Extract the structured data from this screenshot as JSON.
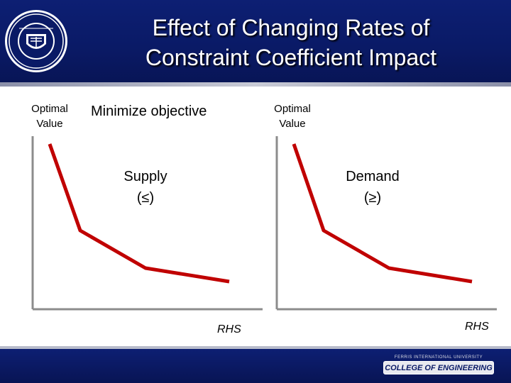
{
  "slide": {
    "title_line1": "Effect of Changing Rates of",
    "title_line2": "Constraint Coefficient Impact"
  },
  "left_graph": {
    "y_label_line1": "Optimal",
    "y_label_line2": "Value",
    "objective": "Minimize objective",
    "constraint_line1": "Supply",
    "constraint_line2": "(≤)",
    "x_label": "RHS"
  },
  "right_graph": {
    "y_label_line1": "Optimal",
    "y_label_line2": "Value",
    "constraint_line1": "Demand",
    "constraint_line2": "(≥)",
    "x_label": "RHS"
  },
  "colors": {
    "curve": "#c00000",
    "header": "#0a1a66"
  },
  "footer": {
    "logo_subtitle": "FERRIS INTERNATIONAL UNIVERSITY",
    "logo_text": "COLLEGE OF ENGINEERING"
  }
}
